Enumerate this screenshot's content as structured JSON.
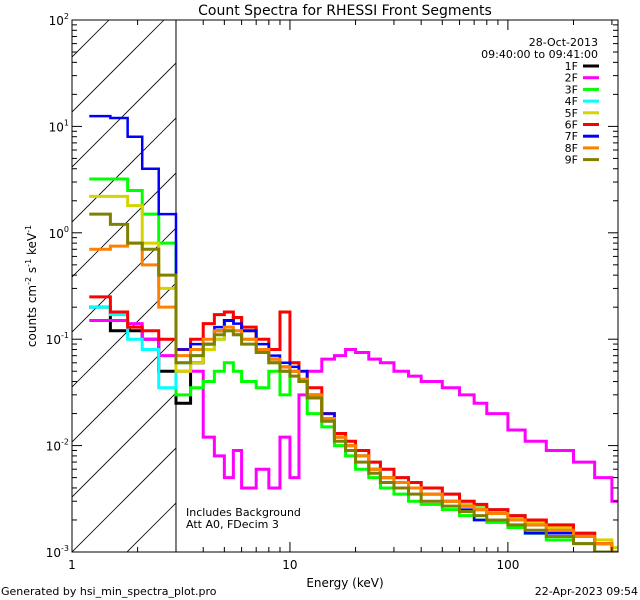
{
  "chart_data": {
    "type": "line",
    "title": "Count Spectra for RHESSI Front Segments",
    "xlabel": "Energy (keV)",
    "ylabel": {
      "base": "counts cm",
      "e1": "-2",
      "mid": " s",
      "e2": "-1",
      "mid2": " keV",
      "e3": "-1"
    },
    "xscale": "log",
    "yscale": "log",
    "xlim": [
      1,
      320
    ],
    "ylim": [
      0.001,
      100
    ],
    "xticks": [
      {
        "value": 1,
        "label": "1"
      },
      {
        "value": 10,
        "label": "10"
      },
      {
        "value": 100,
        "label": "100"
      }
    ],
    "yticks": [
      {
        "value": 0.001,
        "base": "10",
        "exp": "-3"
      },
      {
        "value": 0.01,
        "base": "10",
        "exp": "-2"
      },
      {
        "value": 0.1,
        "base": "10",
        "exp": "-1"
      },
      {
        "value": 1,
        "base": "10",
        "exp": "0"
      },
      {
        "value": 10,
        "base": "10",
        "exp": "1"
      },
      {
        "value": 100,
        "base": "10",
        "exp": "2"
      }
    ],
    "shaded_region": {
      "from": 1,
      "to": 3,
      "style": "hatched"
    },
    "legend": {
      "placement": "top-right",
      "date": "28-Oct-2013",
      "time_range": "09:40:00 to 09:41:00"
    },
    "annotations": [
      "Includes Background",
      "Att A0, FDecim 3"
    ],
    "energy_edges": [
      1.2,
      1.5,
      1.8,
      2.1,
      2.5,
      3,
      3.5,
      4,
      4.5,
      5,
      5.5,
      6,
      7,
      8,
      9,
      10,
      11,
      12,
      14,
      16,
      18,
      20,
      23,
      26,
      30,
      35,
      40,
      50,
      60,
      70,
      80,
      100,
      120,
      150,
      200,
      250,
      300,
      320
    ],
    "series": [
      {
        "name": "1F",
        "color": "#000000",
        "values": [
          0.2,
          0.12,
          0.12,
          0.1,
          0.05,
          0.025,
          0.06,
          0.09,
          0.12,
          0.15,
          0.16,
          0.12,
          0.08,
          0.065,
          0.055,
          0.05,
          0.04,
          0.03,
          0.017,
          0.012,
          0.01,
          0.008,
          0.006,
          0.005,
          0.0045,
          0.004,
          0.0035,
          0.003,
          0.0027,
          0.0025,
          0.0023,
          0.002,
          0.0018,
          0.0016,
          0.0015,
          0.0012,
          0.001
        ]
      },
      {
        "name": "2F",
        "color": "#ff00ff",
        "values": [
          0.15,
          0.15,
          0.14,
          0.1,
          0.07,
          0.05,
          0.05,
          0.012,
          0.008,
          0.005,
          0.009,
          0.004,
          0.006,
          0.004,
          0.012,
          0.005,
          0.03,
          0.05,
          0.065,
          0.07,
          0.08,
          0.075,
          0.065,
          0.06,
          0.05,
          0.045,
          0.04,
          0.035,
          0.03,
          0.025,
          0.02,
          0.014,
          0.011,
          0.009,
          0.007,
          0.005,
          0.003
        ]
      },
      {
        "name": "3F",
        "color": "#00ff00",
        "values": [
          3.2,
          3.2,
          2.5,
          1.5,
          0.8,
          0.03,
          0.035,
          0.04,
          0.05,
          0.06,
          0.05,
          0.04,
          0.035,
          0.05,
          0.03,
          0.06,
          0.04,
          0.02,
          0.015,
          0.01,
          0.008,
          0.006,
          0.005,
          0.004,
          0.0035,
          0.003,
          0.0028,
          0.0025,
          0.0022,
          0.002,
          0.0019,
          0.0017,
          0.0015,
          0.0013,
          0.0012,
          0.001,
          0.001
        ]
      },
      {
        "name": "4F",
        "color": "#00ffff",
        "values": [
          0.2,
          0.17,
          0.1,
          0.08,
          0.035,
          0.06,
          0.07,
          0.08,
          0.1,
          0.12,
          0.11,
          0.1,
          0.08,
          0.06,
          0.05,
          0.05,
          0.04,
          0.03,
          0.02,
          0.013,
          0.01,
          0.008,
          0.007,
          0.006,
          0.005,
          0.0045,
          0.004,
          0.0035,
          0.003,
          0.0027,
          0.0025,
          0.0022,
          0.002,
          0.0017,
          0.0015,
          0.0012,
          0.001
        ]
      },
      {
        "name": "5F",
        "color": "#d4d400",
        "values": [
          2.2,
          2.2,
          1.8,
          0.8,
          0.3,
          0.05,
          0.06,
          0.08,
          0.1,
          0.12,
          0.12,
          0.1,
          0.08,
          0.06,
          0.05,
          0.05,
          0.04,
          0.03,
          0.018,
          0.012,
          0.01,
          0.008,
          0.006,
          0.005,
          0.0045,
          0.004,
          0.0035,
          0.003,
          0.0028,
          0.0026,
          0.0024,
          0.0021,
          0.0019,
          0.0017,
          0.0015,
          0.0013,
          0.0011
        ]
      },
      {
        "name": "6F",
        "color": "#ff0000",
        "values": [
          0.25,
          0.18,
          0.13,
          0.12,
          0.1,
          0.08,
          0.1,
          0.14,
          0.17,
          0.18,
          0.16,
          0.13,
          0.1,
          0.08,
          0.18,
          0.06,
          0.05,
          0.035,
          0.02,
          0.013,
          0.011,
          0.009,
          0.007,
          0.006,
          0.005,
          0.0045,
          0.004,
          0.0035,
          0.003,
          0.0028,
          0.0025,
          0.0022,
          0.002,
          0.0018,
          0.0015,
          0.0012,
          0.001
        ]
      },
      {
        "name": "7F",
        "color": "#0000ff",
        "values": [
          12.5,
          12,
          8,
          4,
          1.5,
          0.08,
          0.09,
          0.1,
          0.13,
          0.15,
          0.14,
          0.12,
          0.09,
          0.07,
          0.06,
          0.055,
          0.05,
          0.03,
          0.02,
          0.012,
          0.01,
          0.008,
          0.006,
          0.005,
          0.004,
          0.004,
          0.003,
          0.003,
          0.0025,
          0.002,
          0.002,
          0.002,
          0.0015,
          0.0015,
          0.0012,
          0.001,
          0.001
        ]
      },
      {
        "name": "8F",
        "color": "#ff8000",
        "values": [
          0.7,
          0.75,
          0.8,
          0.5,
          0.2,
          0.07,
          0.08,
          0.1,
          0.12,
          0.13,
          0.12,
          0.1,
          0.08,
          0.065,
          0.055,
          0.05,
          0.042,
          0.03,
          0.018,
          0.012,
          0.01,
          0.008,
          0.006,
          0.005,
          0.0045,
          0.004,
          0.0035,
          0.003,
          0.0027,
          0.0025,
          0.0023,
          0.002,
          0.0018,
          0.0016,
          0.0014,
          0.0012,
          0.001
        ]
      },
      {
        "name": "9F",
        "color": "#808000",
        "values": [
          1.5,
          1.2,
          0.8,
          0.7,
          0.4,
          0.06,
          0.07,
          0.09,
          0.11,
          0.12,
          0.11,
          0.09,
          0.075,
          0.06,
          0.05,
          0.045,
          0.04,
          0.028,
          0.017,
          0.011,
          0.009,
          0.007,
          0.0055,
          0.0045,
          0.004,
          0.0035,
          0.003,
          0.0027,
          0.0024,
          0.0022,
          0.002,
          0.0018,
          0.0016,
          0.0014,
          0.0012,
          0.001,
          0.001
        ]
      }
    ]
  },
  "footer": {
    "generated_by": "Generated by hsi_min_spectra_plot.pro",
    "timestamp": "22-Apr-2023 09:54"
  }
}
